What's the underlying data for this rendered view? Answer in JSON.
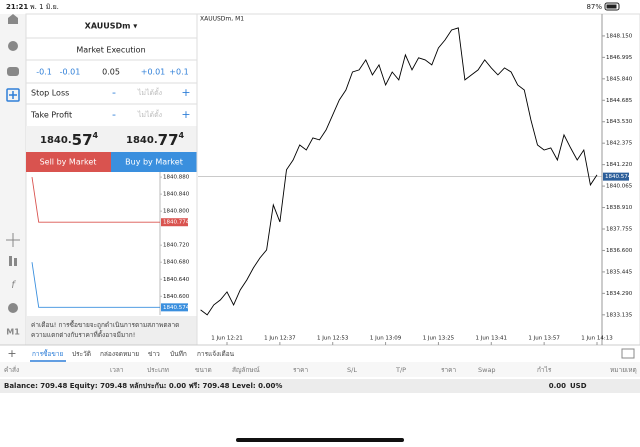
{
  "status_bar": {
    "time": "21:21",
    "date": "พ. 1 มิ.ย.",
    "battery": "87%"
  },
  "toolbar": {
    "timeframe": "M1"
  },
  "order_panel": {
    "symbol": "XAUUSDm ▾",
    "mode": "Market Execution",
    "volume": [
      "-0.1",
      "-0.01",
      "0.05",
      "+0.01",
      "+0.1"
    ],
    "stop_loss": {
      "label": "Stop Loss",
      "minus": "-",
      "value": "ไม่ได้ตั้ง",
      "plus": "+"
    },
    "take_profit": {
      "label": "Take Profit",
      "minus": "-",
      "value": "ไม่ได้ตั้ง",
      "plus": "+"
    },
    "bid": {
      "main": "1840.",
      "big": "57",
      "sup": "4"
    },
    "ask": {
      "main": "1840.",
      "big": "77",
      "sup": "4"
    },
    "sell_button": "Sell by Market",
    "buy_button": "Buy by Market",
    "warning": [
      "ค่าเตือน! การซื้อขายจะถูกดำเนินการตามสภาพตลาด",
      "ความแตกต่างกับราคาที่ตั้งอาจมีมาก!"
    ]
  },
  "chart_data": [
    {
      "type": "line",
      "title": "XAUUSDm, M1",
      "color": "#000000",
      "x": [
        "1 Jun 12:13",
        "1 Jun 12:15",
        "1 Jun 12:17",
        "1 Jun 12:19",
        "1 Jun 12:21",
        "1 Jun 12:23",
        "1 Jun 12:25",
        "1 Jun 12:27",
        "1 Jun 12:29",
        "1 Jun 12:31",
        "1 Jun 12:33",
        "1 Jun 12:35",
        "1 Jun 12:37",
        "1 Jun 12:39",
        "1 Jun 12:41",
        "1 Jun 12:43",
        "1 Jun 12:45",
        "1 Jun 12:47",
        "1 Jun 12:49",
        "1 Jun 12:51",
        "1 Jun 12:53",
        "1 Jun 12:55",
        "1 Jun 12:57",
        "1 Jun 12:59",
        "1 Jun 13:01",
        "1 Jun 13:03",
        "1 Jun 13:05",
        "1 Jun 13:07",
        "1 Jun 13:09",
        "1 Jun 13:11",
        "1 Jun 13:13",
        "1 Jun 13:15",
        "1 Jun 13:17",
        "1 Jun 13:19",
        "1 Jun 13:21",
        "1 Jun 13:23",
        "1 Jun 13:25",
        "1 Jun 13:27",
        "1 Jun 13:29",
        "1 Jun 13:31",
        "1 Jun 13:33",
        "1 Jun 13:35",
        "1 Jun 13:37",
        "1 Jun 13:39",
        "1 Jun 13:41",
        "1 Jun 13:43",
        "1 Jun 13:45",
        "1 Jun 13:47",
        "1 Jun 13:49",
        "1 Jun 13:51",
        "1 Jun 13:53",
        "1 Jun 13:55",
        "1 Jun 13:57",
        "1 Jun 13:59",
        "1 Jun 14:01",
        "1 Jun 14:03",
        "1 Jun 14:05",
        "1 Jun 14:07",
        "1 Jun 14:09",
        "1 Jun 14:11",
        "1 Jun 14:13"
      ],
      "values": [
        1833.4,
        1833.13,
        1833.67,
        1833.94,
        1834.37,
        1833.67,
        1834.47,
        1835.01,
        1835.66,
        1836.2,
        1836.63,
        1839.05,
        1838.14,
        1840.94,
        1841.47,
        1842.28,
        1842.01,
        1842.66,
        1842.55,
        1843.09,
        1843.9,
        1844.7,
        1845.24,
        1846.21,
        1846.32,
        1846.86,
        1846.05,
        1846.59,
        1845.51,
        1846.21,
        1845.78,
        1847.13,
        1846.32,
        1846.97,
        1846.86,
        1846.59,
        1847.5,
        1847.93,
        1848.47,
        1848.58,
        1845.78,
        1846.05,
        1846.32,
        1846.86,
        1846.43,
        1846.05,
        1846.43,
        1846.21,
        1845.51,
        1845.24,
        1843.63,
        1842.28,
        1842.01,
        1842.12,
        1841.47,
        1842.82,
        1842.12,
        1841.47,
        1842.01,
        1840.13,
        1840.67
      ],
      "xticks": [
        "1 Jun 12:21",
        "1 Jun 12:37",
        "1 Jun 12:53",
        "1 Jun 13:09",
        "1 Jun 13:25",
        "1 Jun 13:41",
        "1 Jun 13:57",
        "1 Jun 14:13"
      ],
      "ylim": [
        1831.51,
        1849.33
      ],
      "yticks": [
        {
          "value": 1848.15,
          "label": "1848.150"
        },
        1846.995,
        {
          "value": 1845.84,
          "label": "1845.840"
        },
        1844.685,
        {
          "value": 1843.53,
          "label": "1843.530"
        },
        1842.375,
        {
          "value": 1841.22,
          "label": "1841.220"
        },
        1840.065,
        {
          "value": 1838.91,
          "label": "1838.910"
        },
        1837.755,
        {
          "value": 1836.6,
          "label": "1836.600"
        },
        1835.445,
        {
          "value": 1834.29,
          "label": "1834.290"
        },
        1833.135
      ],
      "last_price": 1840.574
    },
    {
      "type": "line",
      "series": [
        {
          "name": "Ask",
          "color": "#d9534f",
          "values": [
            1840.88,
            1840.774,
            1840.774,
            1840.774,
            1840.774,
            1840.774,
            1840.774,
            1840.774,
            1840.774,
            1840.774,
            1840.774,
            1840.774,
            1840.774,
            1840.774,
            1840.774,
            1840.774,
            1840.774,
            1840.774,
            1840.774,
            1840.774
          ]
        },
        {
          "name": "Bid",
          "color": "#3a8fde",
          "values": [
            1840.68,
            1840.574,
            1840.574,
            1840.574,
            1840.574,
            1840.574,
            1840.574,
            1840.574,
            1840.574,
            1840.574,
            1840.574,
            1840.574,
            1840.574,
            1840.574,
            1840.574,
            1840.574,
            1840.574,
            1840.574,
            1840.574,
            1840.574
          ]
        }
      ],
      "ylim": [
        1840.556,
        1840.892
      ],
      "yticks": [
        {
          "value": 1840.88,
          "label": "1840.880"
        },
        {
          "value": 1840.84,
          "label": "1840.840"
        },
        {
          "value": 1840.8,
          "label": "1840.800"
        },
        {
          "value": 1840.72,
          "label": "1840.720"
        },
        {
          "value": 1840.68,
          "label": "1840.680"
        },
        {
          "value": 1840.64,
          "label": "1840.640"
        },
        {
          "value": 1840.6,
          "label": "1840.600"
        }
      ]
    }
  ],
  "bottom_panel": {
    "add": "+",
    "tabs": [
      "การซื้อขาย",
      "ประวัติ",
      "กล่องจดหมาย",
      "ข่าว",
      "บันทึก",
      "การแจ้งเตือน"
    ],
    "columns": [
      "คำสั่ง",
      "เวลา",
      "ประเภท",
      "ขนาด",
      "สัญลักษณ์",
      "ราคา",
      "S/L",
      "T/P",
      "ราคา",
      "Swap",
      "กำไร",
      "หมายเหตุ"
    ],
    "balance": "Balance: 709.48 Equity: 709.48 หลักประกัน: 0.00 ฟรี: 709.48 Level: 0.00%",
    "profit": "0.00",
    "currency": "USD"
  }
}
